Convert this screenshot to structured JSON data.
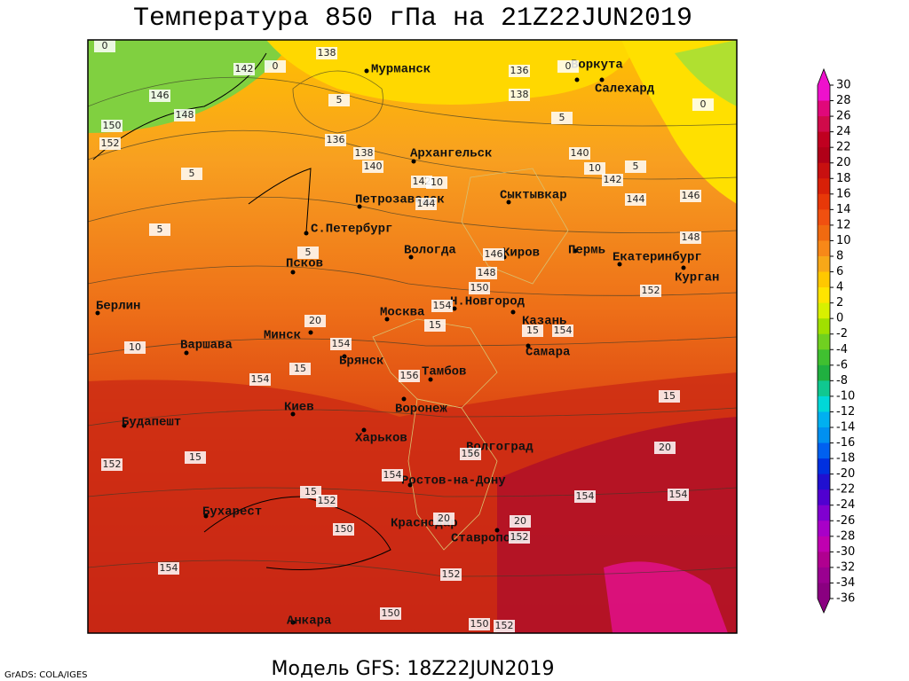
{
  "header": {
    "title": "Температура 850 гПа на 21Z22JUN2019"
  },
  "map": {
    "cities": [
      "Мурманск",
      "Воркута",
      "Салехард",
      "Архангельск",
      "Сыктывкар",
      "Петрозаводск",
      "С.Петербург",
      "Вологда",
      "Киров",
      "Пермь",
      "Екатеринбург",
      "Курган",
      "Псков",
      "Н.Новгород",
      "Москва",
      "Казань",
      "Берлин",
      "Минск",
      "Варшава",
      "Самара",
      "Брянск",
      "Тамбов",
      "Киев",
      "Воронеж",
      "Будапешт",
      "Харьков",
      "Волгоград",
      "Ростов-на-Дону",
      "Бухарест",
      "Краснодар",
      "Ставрополь",
      "Анкара"
    ],
    "contour_labels": [
      142,
      138,
      136,
      138,
      146,
      148,
      150,
      152,
      136,
      138,
      140,
      142,
      144,
      140,
      142,
      144,
      146,
      148,
      146,
      148,
      150,
      152,
      154,
      154,
      15,
      15,
      154,
      154,
      156,
      15,
      15,
      20,
      152,
      15,
      154,
      156,
      154,
      154,
      15,
      152,
      150,
      20,
      20,
      152,
      154,
      152,
      150,
      150,
      152,
      10,
      10,
      5,
      5,
      5,
      5,
      5,
      5,
      0,
      0,
      0,
      0,
      20,
      10
    ]
  },
  "colorbar": {
    "labels": [
      30,
      28,
      26,
      24,
      22,
      20,
      18,
      16,
      14,
      12,
      10,
      8,
      6,
      4,
      2,
      0,
      -2,
      -4,
      -6,
      -8,
      -10,
      -12,
      -14,
      -16,
      -18,
      -20,
      -22,
      -24,
      -26,
      -28,
      -30,
      -32,
      -34,
      -36
    ],
    "colors": [
      "#ee11cc",
      "#e0087a",
      "#d00a4a",
      "#c00020",
      "#b00018",
      "#c81010",
      "#d82008",
      "#e83808",
      "#f05010",
      "#f06a10",
      "#f88818",
      "#f8a818",
      "#ffc800",
      "#ffe400",
      "#d8f000",
      "#a0e000",
      "#70d020",
      "#40c030",
      "#20b040",
      "#10c890",
      "#00d8d8",
      "#00b0f0",
      "#0090f0",
      "#0060f0",
      "#0030e0",
      "#2010d0",
      "#5000d0",
      "#8000d0",
      "#a800c8",
      "#c000b0",
      "#b00090",
      "#9a0090",
      "#8a0080"
    ]
  },
  "footer": {
    "subtitle": "Модель GFS: 18Z22JUN2019",
    "credit": "GrADS: COLA/IGES"
  }
}
